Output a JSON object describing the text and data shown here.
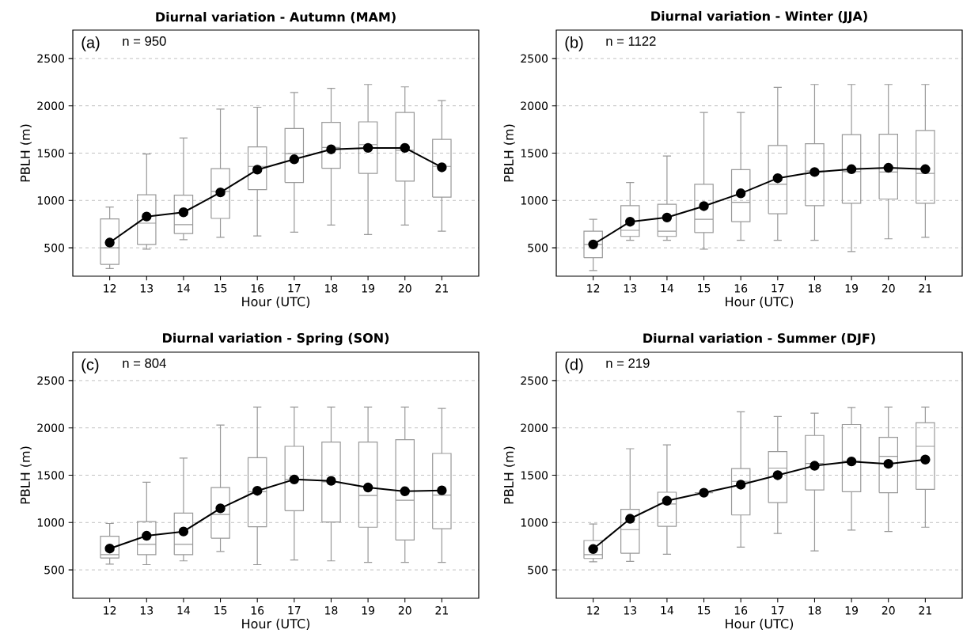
{
  "chart_data": [
    {
      "type": "box",
      "title": "Diurnal variation - Autumn (MAM)",
      "xlabel": "Hour (UTC)",
      "ylabel": "PBLH (m)",
      "annotations": [
        "(a)",
        "n = 950"
      ],
      "categories": [
        "12",
        "13",
        "14",
        "15",
        "16",
        "17",
        "18",
        "19",
        "20",
        "21"
      ],
      "color": "#999999",
      "ylim": [
        200,
        2800
      ],
      "yticks": [
        500,
        1000,
        1500,
        2000,
        2500
      ],
      "grid": "y",
      "marker": "circle",
      "line_style": "solid",
      "boxes": [
        {
          "low": 280,
          "q1": 325,
          "median": 500,
          "q3": 805,
          "high": 930
        },
        {
          "low": 485,
          "q1": 535,
          "median": 760,
          "q3": 1060,
          "high": 1490
        },
        {
          "low": 585,
          "q1": 650,
          "median": 745,
          "q3": 1055,
          "high": 1660
        },
        {
          "low": 610,
          "q1": 810,
          "median": 1095,
          "q3": 1335,
          "high": 1965
        },
        {
          "low": 625,
          "q1": 1115,
          "median": 1360,
          "q3": 1565,
          "high": 1985
        },
        {
          "low": 665,
          "q1": 1190,
          "median": 1495,
          "q3": 1760,
          "high": 2140
        },
        {
          "low": 740,
          "q1": 1340,
          "median": 1560,
          "q3": 1825,
          "high": 2185
        },
        {
          "low": 640,
          "q1": 1285,
          "median": 1590,
          "q3": 1830,
          "high": 2225
        },
        {
          "low": 740,
          "q1": 1205,
          "median": 1530,
          "q3": 1930,
          "high": 2200
        },
        {
          "low": 675,
          "q1": 1035,
          "median": 1360,
          "q3": 1645,
          "high": 2055
        }
      ],
      "series": [
        {
          "type": "line",
          "color": "#000000",
          "values": [
            555,
            830,
            875,
            1085,
            1325,
            1435,
            1540,
            1555,
            1555,
            1350
          ]
        }
      ]
    },
    {
      "type": "box",
      "title": "Diurnal variation - Winter (JJA)",
      "xlabel": "Hour (UTC)",
      "ylabel": "PBLH (m)",
      "annotations": [
        "(b)",
        "n = 1122"
      ],
      "categories": [
        "12",
        "13",
        "14",
        "15",
        "16",
        "17",
        "18",
        "19",
        "20",
        "21"
      ],
      "color": "#999999",
      "ylim": [
        200,
        2800
      ],
      "yticks": [
        500,
        1000,
        1500,
        2000,
        2500
      ],
      "grid": "y",
      "marker": "circle",
      "line_style": "solid",
      "boxes": [
        {
          "low": 260,
          "q1": 395,
          "median": 535,
          "q3": 675,
          "high": 800
        },
        {
          "low": 580,
          "q1": 620,
          "median": 685,
          "q3": 945,
          "high": 1190
        },
        {
          "low": 580,
          "q1": 620,
          "median": 675,
          "q3": 960,
          "high": 1470
        },
        {
          "low": 485,
          "q1": 660,
          "median": 800,
          "q3": 1170,
          "high": 1930
        },
        {
          "low": 580,
          "q1": 775,
          "median": 980,
          "q3": 1325,
          "high": 1930
        },
        {
          "low": 580,
          "q1": 860,
          "median": 1170,
          "q3": 1580,
          "high": 2195
        },
        {
          "low": 580,
          "q1": 945,
          "median": 1310,
          "q3": 1600,
          "high": 2225
        },
        {
          "low": 460,
          "q1": 970,
          "median": 1305,
          "q3": 1695,
          "high": 2225
        },
        {
          "low": 595,
          "q1": 1015,
          "median": 1300,
          "q3": 1700,
          "high": 2225
        },
        {
          "low": 610,
          "q1": 970,
          "median": 1285,
          "q3": 1740,
          "high": 2225
        }
      ],
      "series": [
        {
          "type": "line",
          "color": "#000000",
          "values": [
            535,
            775,
            820,
            940,
            1075,
            1235,
            1300,
            1330,
            1345,
            1330
          ]
        }
      ]
    },
    {
      "type": "box",
      "title": "Diurnal variation - Spring (SON)",
      "xlabel": "Hour (UTC)",
      "ylabel": "PBLH (m)",
      "annotations": [
        "(c)",
        "n = 804"
      ],
      "categories": [
        "12",
        "13",
        "14",
        "15",
        "16",
        "17",
        "18",
        "19",
        "20",
        "21"
      ],
      "color": "#999999",
      "ylim": [
        200,
        2800
      ],
      "yticks": [
        500,
        1000,
        1500,
        2000,
        2500
      ],
      "grid": "y",
      "marker": "circle",
      "line_style": "solid",
      "boxes": [
        {
          "low": 560,
          "q1": 625,
          "median": 660,
          "q3": 855,
          "high": 990
        },
        {
          "low": 555,
          "q1": 660,
          "median": 770,
          "q3": 1010,
          "high": 1425
        },
        {
          "low": 595,
          "q1": 660,
          "median": 770,
          "q3": 1100,
          "high": 1680
        },
        {
          "low": 695,
          "q1": 835,
          "median": 1085,
          "q3": 1370,
          "high": 2030
        },
        {
          "low": 555,
          "q1": 955,
          "median": 1325,
          "q3": 1685,
          "high": 2220
        },
        {
          "low": 605,
          "q1": 1125,
          "median": 1455,
          "q3": 1805,
          "high": 2220
        },
        {
          "low": 595,
          "q1": 1005,
          "median": 1430,
          "q3": 1850,
          "high": 2220
        },
        {
          "low": 580,
          "q1": 950,
          "median": 1285,
          "q3": 1850,
          "high": 2220
        },
        {
          "low": 580,
          "q1": 815,
          "median": 1235,
          "q3": 1875,
          "high": 2220
        },
        {
          "low": 580,
          "q1": 935,
          "median": 1290,
          "q3": 1730,
          "high": 2205
        }
      ],
      "series": [
        {
          "type": "line",
          "color": "#000000",
          "values": [
            725,
            860,
            905,
            1150,
            1335,
            1455,
            1440,
            1370,
            1330,
            1340
          ]
        }
      ]
    },
    {
      "type": "box",
      "title": "Diurnal variation - Summer (DJF)",
      "xlabel": "Hour (UTC)",
      "ylabel": "PBLH (m)",
      "annotations": [
        "(d)",
        "n = 219"
      ],
      "categories": [
        "12",
        "13",
        "14",
        "15",
        "16",
        "17",
        "18",
        "19",
        "20",
        "21"
      ],
      "color": "#999999",
      "ylim": [
        200,
        2800
      ],
      "yticks": [
        500,
        1000,
        1500,
        2000,
        2500
      ],
      "grid": "y",
      "marker": "circle",
      "line_style": "solid",
      "boxes": [
        {
          "low": 585,
          "q1": 620,
          "median": 660,
          "q3": 810,
          "high": 985
        },
        {
          "low": 590,
          "q1": 675,
          "median": 925,
          "q3": 1140,
          "high": 1780
        },
        {
          "low": 665,
          "q1": 960,
          "median": 1195,
          "q3": 1320,
          "high": 1820
        },
        {
          "low": 1315,
          "q1": 1315,
          "median": 1315,
          "q3": 1315,
          "high": 1315
        },
        {
          "low": 740,
          "q1": 1080,
          "median": 1435,
          "q3": 1570,
          "high": 2170
        },
        {
          "low": 885,
          "q1": 1210,
          "median": 1575,
          "q3": 1750,
          "high": 2120
        },
        {
          "low": 700,
          "q1": 1345,
          "median": 1625,
          "q3": 1920,
          "high": 2155
        },
        {
          "low": 920,
          "q1": 1325,
          "median": 1650,
          "q3": 2035,
          "high": 2215
        },
        {
          "low": 905,
          "q1": 1315,
          "median": 1700,
          "q3": 1900,
          "high": 2220
        },
        {
          "low": 950,
          "q1": 1350,
          "median": 1805,
          "q3": 2055,
          "high": 2220
        }
      ],
      "series": [
        {
          "type": "line",
          "color": "#000000",
          "values": [
            720,
            1040,
            1230,
            1315,
            1400,
            1500,
            1600,
            1645,
            1620,
            1665
          ]
        }
      ]
    }
  ]
}
